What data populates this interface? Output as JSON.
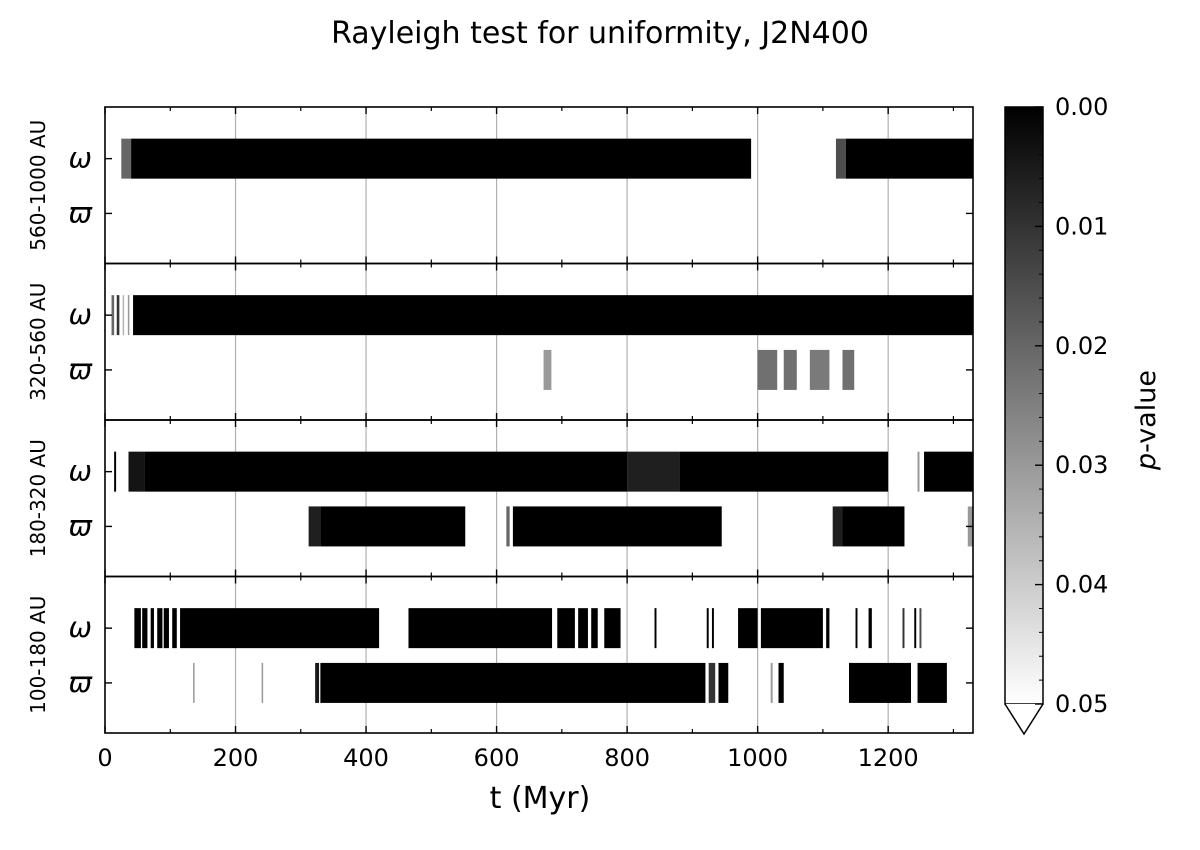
{
  "chart_data": {
    "type": "heatmap",
    "title": "Rayleigh test for uniformity, J2N400",
    "xlabel": "t (Myr)",
    "xlim": [
      0,
      1330
    ],
    "xticks": [
      0,
      200,
      400,
      600,
      800,
      1000,
      1200
    ],
    "xtick_labels": [
      "0",
      "200",
      "400",
      "600",
      "800",
      "1000",
      "1200"
    ],
    "grid": "vertical lines at major x ticks",
    "row_labels": [
      "ω",
      "ϖ"
    ],
    "colorbar": {
      "label_prefix": "p",
      "label_suffix": "-value",
      "range": [
        0,
        0.05
      ],
      "ticks": [
        0.0,
        0.01,
        0.02,
        0.03,
        0.04,
        0.05
      ],
      "tick_labels": [
        "0.00",
        "0.01",
        "0.02",
        "0.03",
        "0.04",
        "0.05"
      ],
      "colormap": "black (p=0) to white (p=0.05)",
      "extend": "max"
    },
    "panels": [
      {
        "label": "560-1000 AU",
        "rows": {
          "omega": [
            [
              25,
              40,
              0.02
            ],
            [
              40,
              990,
              0.0
            ],
            [
              1120,
              1135,
              0.015
            ],
            [
              1135,
              1330,
              0.0
            ]
          ],
          "varpi": []
        }
      },
      {
        "label": "320-560 AU",
        "rows": {
          "omega": [
            [
              10,
              14,
              0.02
            ],
            [
              18,
              22,
              0.01
            ],
            [
              27,
              29,
              0.035
            ],
            [
              35,
              37,
              0.03
            ],
            [
              43,
              1330,
              0.0
            ]
          ],
          "varpi": [
            [
              672,
              684,
              0.03
            ],
            [
              1000,
              1030,
              0.022
            ],
            [
              1040,
              1060,
              0.022
            ],
            [
              1080,
              1110,
              0.024
            ],
            [
              1130,
              1148,
              0.022
            ]
          ]
        }
      },
      {
        "label": "180-320 AU",
        "rows": {
          "omega": [
            [
              14,
              17,
              0.0
            ],
            [
              36,
              60,
              0.004
            ],
            [
              60,
              800,
              0.0
            ],
            [
              800,
              880,
              0.006
            ],
            [
              880,
              1200,
              0.0
            ],
            [
              1245,
              1248,
              0.03
            ],
            [
              1255,
              1330,
              0.0
            ]
          ],
          "varpi": [
            [
              312,
              330,
              0.006
            ],
            [
              330,
              552,
              0.0
            ],
            [
              615,
              620,
              0.02
            ],
            [
              625,
              945,
              0.0
            ],
            [
              1115,
              1130,
              0.006
            ],
            [
              1130,
              1225,
              0.0
            ],
            [
              1322,
              1330,
              0.03
            ]
          ]
        }
      },
      {
        "label": "100-180 AU",
        "rows": {
          "omega": [
            [
              45,
              55,
              0.0
            ],
            [
              57,
              65,
              0.0
            ],
            [
              70,
              75,
              0.0
            ],
            [
              80,
              88,
              0.0
            ],
            [
              90,
              98,
              0.0
            ],
            [
              103,
              110,
              0.0
            ],
            [
              115,
              420,
              0.0
            ],
            [
              465,
              685,
              0.0
            ],
            [
              693,
              720,
              0.0
            ],
            [
              725,
              740,
              0.0
            ],
            [
              745,
              755,
              0.0
            ],
            [
              765,
              790,
              0.0
            ],
            [
              842,
              845,
              0.0
            ],
            [
              922,
              925,
              0.0
            ],
            [
              930,
              933,
              0.0
            ],
            [
              970,
              1000,
              0.0
            ],
            [
              1005,
              1100,
              0.0
            ],
            [
              1105,
              1110,
              0.0
            ],
            [
              1150,
              1153,
              0.0
            ],
            [
              1170,
              1175,
              0.0
            ],
            [
              1222,
              1225,
              0.01
            ],
            [
              1240,
              1243,
              0.0
            ],
            [
              1248,
              1251,
              0.015
            ]
          ],
          "varpi": [
            [
              135,
              137,
              0.03
            ],
            [
              240,
              242,
              0.03
            ],
            [
              322,
              328,
              0.005
            ],
            [
              330,
              920,
              0.0
            ],
            [
              925,
              935,
              0.01
            ],
            [
              940,
              955,
              0.0
            ],
            [
              1020,
              1023,
              0.03
            ],
            [
              1032,
              1040,
              0.0
            ],
            [
              1140,
              1235,
              0.0
            ],
            [
              1245,
              1290,
              0.0
            ]
          ]
        }
      }
    ]
  }
}
